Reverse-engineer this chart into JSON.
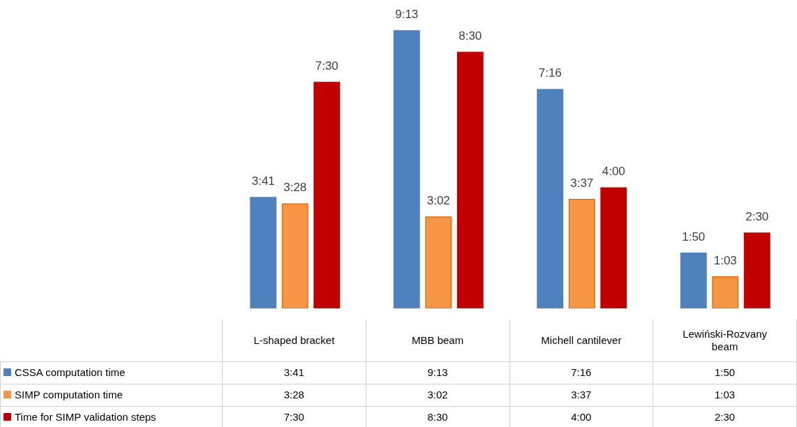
{
  "chart_data": {
    "type": "bar",
    "categories": [
      "L-shaped bracket",
      "MBB beam",
      "Michell cantilever",
      "Lewiński-Rozvany beam"
    ],
    "series": [
      {
        "name": "CSSA computation time",
        "color": "#4f81bd",
        "values": [
          221,
          553,
          436,
          110
        ],
        "value_labels": [
          "3:41",
          "9:13",
          "7:16",
          "1:50"
        ]
      },
      {
        "name": "SIMP computation time",
        "color": "#f79646",
        "values": [
          208,
          182,
          217,
          63
        ],
        "value_labels": [
          "3:28",
          "3:02",
          "3:37",
          "1:03"
        ]
      },
      {
        "name": "Time for SIMP validation steps",
        "color": "#c00000",
        "values": [
          450,
          510,
          240,
          150
        ],
        "value_labels": [
          "7:30",
          "8:30",
          "4:00",
          "2:30"
        ]
      }
    ],
    "legend": "bottom"
  }
}
